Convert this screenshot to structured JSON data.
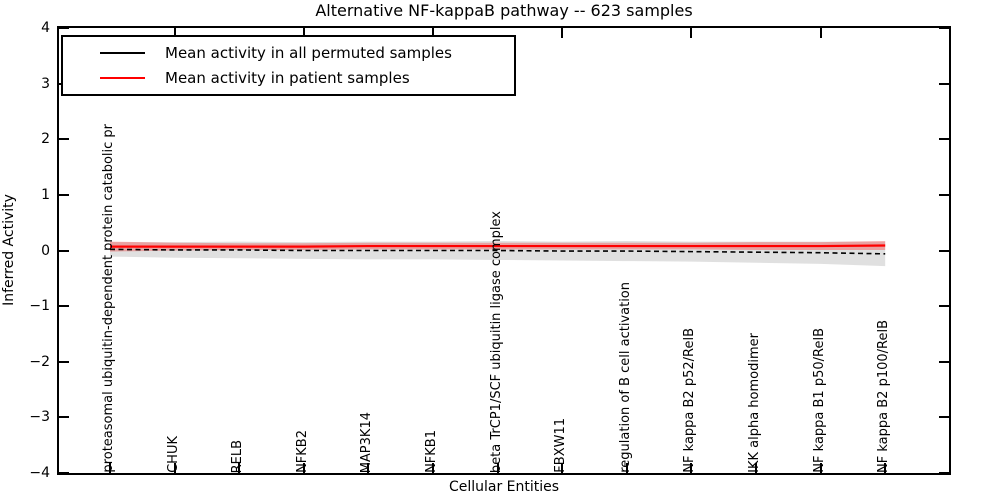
{
  "title": "Alternative NF-kappaB pathway -- 623 samples",
  "axes": {
    "xlabel": "Cellular Entities",
    "ylabel": "Inferred Activity"
  },
  "legend": {
    "position": "upper left",
    "items": [
      {
        "label": "Mean activity in all permuted samples",
        "color": "#000000"
      },
      {
        "label": "Mean activity in patient samples",
        "color": "#ff0000"
      }
    ]
  },
  "chart_data": {
    "type": "line",
    "title": "Alternative NF-kappaB pathway -- 623 samples",
    "xlabel": "Cellular Entities",
    "ylabel": "Inferred Activity",
    "ylim": [
      -4,
      4
    ],
    "yticks": [
      4,
      3,
      2,
      1,
      0,
      -1,
      -2,
      -3,
      -4
    ],
    "grid": false,
    "legend_position": "upper left",
    "categories": [
      "proteasomal ubiquitin-dependent protein catabolic pr",
      "CHUK",
      "RELB",
      "NFKB2",
      "MAP3K14",
      "NFKB1",
      "beta TrCP1/SCF ubiquitin ligase complex",
      "FBXW11",
      "regulation of B cell activation",
      "NF kappa B2 p52/RelB",
      "IKK alpha homodimer",
      "NF kappa B1 p50/RelB",
      "NF kappa B2 p100/RelB"
    ],
    "series": [
      {
        "name": "Mean activity in all permuted samples",
        "color": "#000000",
        "linestyle": "dashed",
        "values": [
          0.02,
          0.01,
          0.01,
          0.0,
          0.0,
          0.0,
          0.0,
          -0.01,
          -0.01,
          -0.02,
          -0.03,
          -0.04,
          -0.06
        ],
        "band_halfwidth": [
          0.13,
          0.14,
          0.15,
          0.15,
          0.16,
          0.16,
          0.17,
          0.17,
          0.18,
          0.18,
          0.19,
          0.2,
          0.22
        ],
        "band_color": "#000000",
        "band_opacity": 0.12
      },
      {
        "name": "Mean activity in patient samples",
        "color": "#ff0000",
        "linestyle": "solid",
        "values": [
          0.07,
          0.07,
          0.07,
          0.07,
          0.08,
          0.08,
          0.08,
          0.08,
          0.08,
          0.08,
          0.08,
          0.08,
          0.09
        ],
        "band_halfwidth": [
          0.09,
          0.07,
          0.06,
          0.06,
          0.06,
          0.06,
          0.06,
          0.06,
          0.06,
          0.06,
          0.07,
          0.07,
          0.08
        ],
        "band_color": "#ff0000",
        "band_opacity": 0.28
      }
    ]
  }
}
